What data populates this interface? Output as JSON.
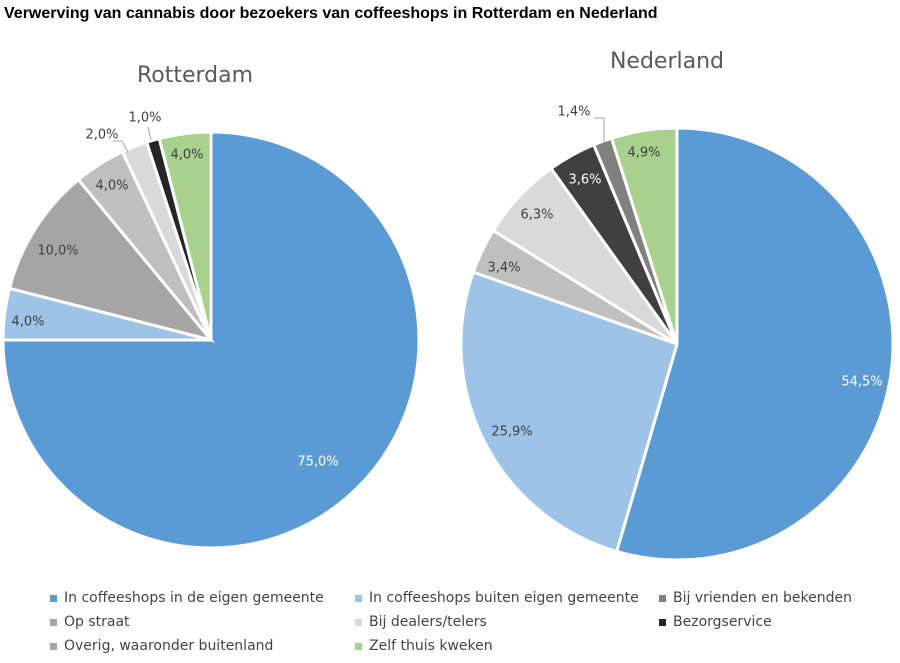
{
  "page_title": "Verwerving van cannabis door bezoekers van coffeeshops in Rotterdam en Nederland",
  "chart_data": [
    {
      "type": "pie",
      "title": "Rotterdam",
      "slices": [
        {
          "category": "In coffeeshops in de eigen gemeente",
          "value": 75.0,
          "label": "75,0%",
          "color": "#5b9bd5"
        },
        {
          "category": "In coffeeshops buiten eigen gemeente",
          "value": 4.0,
          "label": "4,0%",
          "color": "#9dc3e6"
        },
        {
          "category": "Overig, waaronder buitenland",
          "value": 10.0,
          "label": "10,0%",
          "color": "#a5a5a5"
        },
        {
          "category": "Op straat",
          "value": 4.0,
          "label": "4,0%",
          "color": "#bfbfbf"
        },
        {
          "category": "Bij dealers/telers",
          "value": 2.0,
          "label": "2,0%",
          "color": "#d9d9d9"
        },
        {
          "category": "Bezorgservice",
          "value": 1.0,
          "label": "1,0%",
          "color": "#262626"
        },
        {
          "category": "Zelf thuis kweken",
          "value": 4.0,
          "label": "4,0%",
          "color": "#a9d18e"
        }
      ]
    },
    {
      "type": "pie",
      "title": "Nederland",
      "slices": [
        {
          "category": "In coffeeshops in de eigen gemeente",
          "value": 54.5,
          "label": "54,5%",
          "color": "#5b9bd5"
        },
        {
          "category": "In coffeeshops buiten eigen gemeente",
          "value": 25.9,
          "label": "25,9%",
          "color": "#9dc3e6"
        },
        {
          "category": "Op straat",
          "value": 3.4,
          "label": "3,4%",
          "color": "#bfbfbf"
        },
        {
          "category": "Bij dealers/telers",
          "value": 6.3,
          "label": "6,3%",
          "color": "#d9d9d9"
        },
        {
          "category": "Bezorgservice",
          "value": 3.6,
          "label": "3,6%",
          "color": "#404040"
        },
        {
          "category": "Bij vrienden en bekenden",
          "value": 1.4,
          "label": "1,4%",
          "color": "#808080"
        },
        {
          "category": "Zelf thuis kweken",
          "value": 4.9,
          "label": "4,9%",
          "color": "#a9d18e"
        }
      ]
    }
  ],
  "legend": {
    "items": [
      {
        "label": "In coffeeshops in de eigen gemeente",
        "color": "#5b9bd5"
      },
      {
        "label": "In coffeeshops buiten eigen gemeente",
        "color": "#9dc3e6"
      },
      {
        "label": "Bij vrienden en bekenden",
        "color": "#808080"
      },
      {
        "label": "Op straat",
        "color": "#a5a5a5"
      },
      {
        "label": "Bij dealers/telers",
        "color": "#d9d9d9"
      },
      {
        "label": "Bezorgservice",
        "color": "#262626"
      },
      {
        "label": "Overig, waaronder buitenland",
        "color": "#a5a5a5"
      },
      {
        "label": "Zelf thuis kweken",
        "color": "#a9d18e"
      }
    ]
  }
}
